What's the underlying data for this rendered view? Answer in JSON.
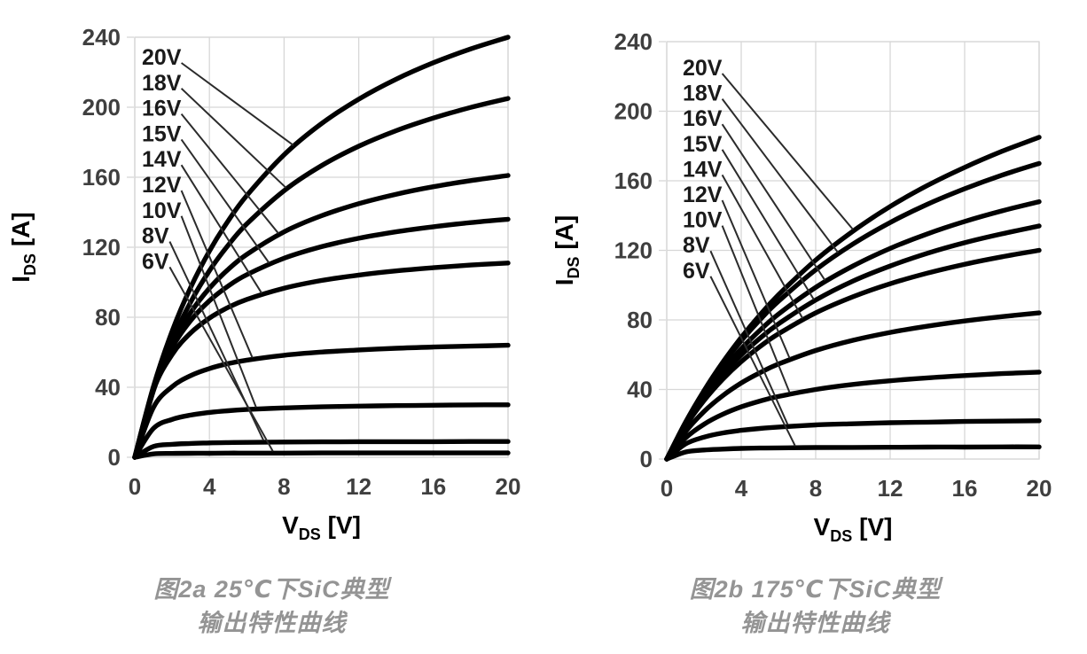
{
  "styles": {
    "background": "#ffffff",
    "curve_color": "#000000",
    "grid_color": "#d7d7d7",
    "axis_tick_color": "#3f3f3f",
    "axis_title_color": "#000000",
    "series_label_color": "#1a1a1a",
    "leader_line_color": "#2b2b2b",
    "caption_color": "#949494"
  },
  "chart_data": [
    {
      "type": "line",
      "temperature": "25℃",
      "caption": [
        "图2a 25℃下SiC典型",
        "输出特性曲线"
      ],
      "xlabel": {
        "symbol": "V",
        "subscript": "DS",
        "unit": "[V]"
      },
      "ylabel": {
        "symbol": "I",
        "subscript": "DS",
        "unit": "[A]"
      },
      "xlim": [
        0,
        20
      ],
      "ylim": [
        0,
        240
      ],
      "x_ticks": [
        0,
        4,
        8,
        12,
        16,
        20
      ],
      "y_ticks": [
        0,
        40,
        80,
        120,
        160,
        200,
        240
      ],
      "grid": true,
      "legend_position": "inside-top-left",
      "x_samples": [
        0,
        1,
        2,
        3,
        4,
        5,
        6,
        8,
        10,
        12,
        14,
        16,
        18,
        20
      ],
      "series": [
        {
          "name": "20V",
          "vgs": 20,
          "values": [
            0,
            40.5,
            72.0,
            97.2,
            117.8,
            135.0,
            149.5,
            172.8,
            190.6,
            204.6,
            216.0,
            225.4,
            233.3,
            240.0
          ],
          "label_target_vds": 8.5
        },
        {
          "name": "18V",
          "vgs": 18,
          "values": [
            0,
            38.1,
            66.6,
            88.8,
            106.6,
            121.1,
            133.3,
            152.3,
            166.6,
            177.7,
            186.6,
            193.8,
            199.9,
            205.0
          ],
          "label_target_vds": 8.1
        },
        {
          "name": "16V",
          "vgs": 16,
          "values": [
            0,
            38.6,
            64.4,
            82.8,
            96.6,
            107.3,
            115.9,
            128.8,
            138.0,
            144.9,
            150.3,
            154.6,
            158.1,
            161.0
          ],
          "label_target_vds": 7.7
        },
        {
          "name": "15V",
          "vgs": 15,
          "values": [
            0,
            39.1,
            62.6,
            78.2,
            89.4,
            97.8,
            104.3,
            113.7,
            120.3,
            125.1,
            128.8,
            131.7,
            134.1,
            136.0
          ],
          "label_target_vds": 7.2
        },
        {
          "name": "14V",
          "vgs": 14,
          "values": [
            0,
            38.5,
            58.7,
            71.1,
            79.5,
            85.6,
            90.2,
            96.6,
            101.0,
            104.1,
            106.5,
            108.3,
            109.8,
            111.0
          ],
          "label_target_vds": 6.8
        },
        {
          "name": "12V",
          "vgs": 12,
          "values": [
            0,
            28.5,
            40.3,
            46.7,
            50.7,
            53.5,
            55.5,
            58.3,
            60.1,
            61.3,
            62.3,
            63.0,
            63.5,
            64.0
          ],
          "label_target_vds": 6.3
        },
        {
          "name": "10V",
          "vgs": 10,
          "values": [
            0,
            16.5,
            21.6,
            24.1,
            25.6,
            26.6,
            27.3,
            28.2,
            28.8,
            29.2,
            29.5,
            29.7,
            29.9,
            30.0
          ],
          "label_target_vds": 6.5
        },
        {
          "name": "8V",
          "vgs": 8,
          "values": [
            0,
            6.2,
            7.4,
            7.9,
            8.2,
            8.4,
            8.5,
            8.7,
            8.8,
            8.9,
            8.9,
            8.9,
            9.0,
            9.0
          ],
          "label_target_vds": 6.9
        },
        {
          "name": "6V",
          "vgs": 6,
          "values": [
            0,
            1.9,
            2.2,
            2.3,
            2.3,
            2.4,
            2.4,
            2.4,
            2.5,
            2.5,
            2.5,
            2.5,
            2.5,
            2.5
          ],
          "label_target_vds": 7.4
        }
      ]
    },
    {
      "type": "line",
      "temperature": "175℃",
      "caption": [
        "图2b 175℃下SiC典型",
        "输出特性曲线"
      ],
      "xlabel": {
        "symbol": "V",
        "subscript": "DS",
        "unit": "[V]"
      },
      "ylabel": {
        "symbol": "I",
        "subscript": "DS",
        "unit": "[A]"
      },
      "xlim": [
        0,
        20
      ],
      "ylim": [
        0,
        240
      ],
      "x_ticks": [
        0,
        4,
        8,
        12,
        16,
        20
      ],
      "y_ticks": [
        0,
        40,
        80,
        120,
        160,
        200,
        240
      ],
      "grid": true,
      "legend_position": "inside-top-left",
      "x_samples": [
        0,
        1,
        2,
        3,
        4,
        5,
        6,
        8,
        10,
        12,
        14,
        16,
        18,
        20
      ],
      "series": [
        {
          "name": "20V",
          "vgs": 20,
          "values": [
            0,
            21.0,
            39.3,
            55.5,
            69.9,
            82.8,
            94.4,
            114.4,
            131.0,
            145.2,
            157.3,
            167.7,
            176.9,
            185.0
          ],
          "label_target_vds": 10.0
        },
        {
          "name": "18V",
          "vgs": 18,
          "values": [
            0,
            20.9,
            38.9,
            54.4,
            68.0,
            80.0,
            90.7,
            108.8,
            123.6,
            136.0,
            146.5,
            155.4,
            163.2,
            170.0
          ],
          "label_target_vds": 9.2
        },
        {
          "name": "16V",
          "vgs": 16,
          "values": [
            0,
            20.2,
            37.0,
            51.2,
            63.4,
            74.0,
            83.3,
            98.7,
            111.0,
            121.1,
            129.5,
            136.6,
            142.7,
            148.0
          ],
          "label_target_vds": 8.5
        },
        {
          "name": "15V",
          "vgs": 15,
          "values": [
            0,
            19.4,
            35.3,
            48.6,
            59.8,
            69.4,
            77.7,
            91.4,
            102.3,
            111.0,
            118.3,
            124.4,
            129.5,
            134.0
          ],
          "label_target_vds": 7.9
        },
        {
          "name": "14V",
          "vgs": 14,
          "values": [
            0,
            18.7,
            33.6,
            45.8,
            56.0,
            64.6,
            72.0,
            84.0,
            93.3,
            100.8,
            106.9,
            112.0,
            116.3,
            120.0
          ],
          "label_target_vds": 7.3
        },
        {
          "name": "12V",
          "vgs": 12,
          "values": [
            0,
            15.6,
            27.3,
            36.4,
            43.7,
            49.6,
            54.6,
            62.4,
            68.3,
            72.8,
            76.4,
            79.4,
            81.9,
            84.0
          ],
          "label_target_vds": 6.6
        },
        {
          "name": "10V",
          "vgs": 10,
          "values": [
            0,
            12.0,
            20.0,
            25.7,
            30.0,
            33.3,
            36.0,
            40.0,
            42.9,
            45.0,
            46.7,
            48.0,
            49.1,
            50.0
          ],
          "label_target_vds": 6.6
        },
        {
          "name": "8V",
          "vgs": 8,
          "values": [
            0,
            8.6,
            12.6,
            15.0,
            16.5,
            17.6,
            18.4,
            19.6,
            20.3,
            20.9,
            21.2,
            21.6,
            21.8,
            22.0
          ],
          "label_target_vds": 6.5
        },
        {
          "name": "6V",
          "vgs": 6,
          "values": [
            0,
            4.0,
            5.2,
            5.7,
            6.1,
            6.3,
            6.4,
            6.6,
            6.7,
            6.8,
            6.9,
            6.9,
            7.0,
            7.0
          ],
          "label_target_vds": 6.9
        }
      ]
    }
  ]
}
